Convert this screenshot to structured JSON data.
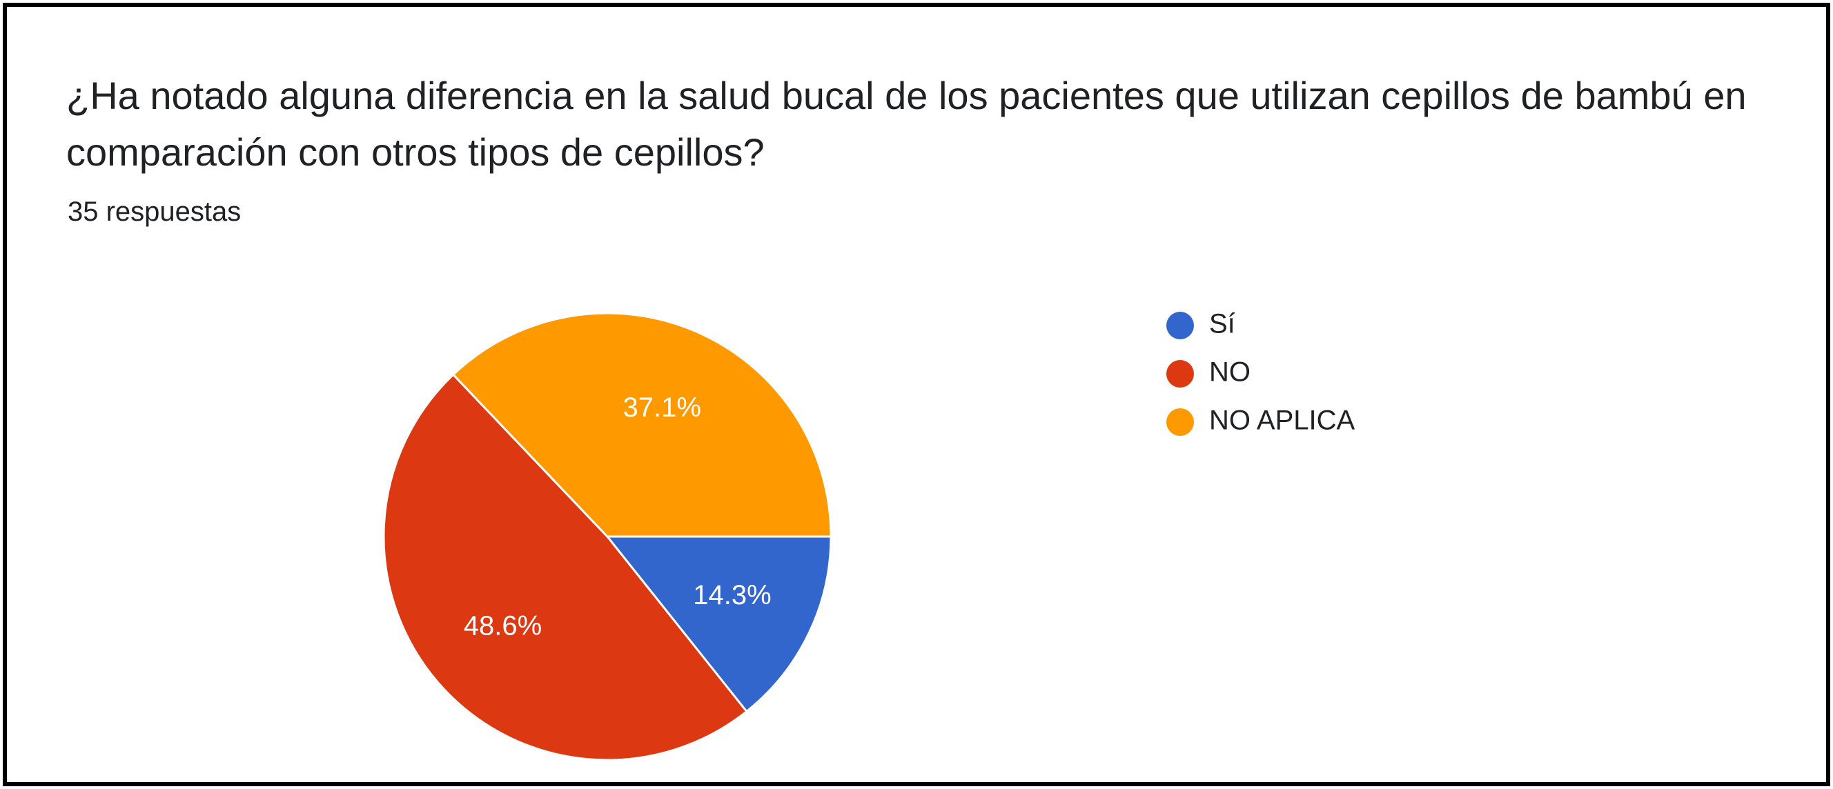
{
  "header": {
    "question": "¿Ha notado alguna diferencia en la salud bucal de los pacientes que utilizan cepillos de bambú en comparación con otros tipos de cepillos?",
    "responses": "35 respuestas"
  },
  "chart_data": {
    "type": "pie",
    "title": "¿Ha notado alguna diferencia en la salud bucal de los pacientes que utilizan cepillos de bambú en comparación con otros tipos de cepillos?",
    "subtitle": "35 respuestas",
    "categories": [
      "Sí",
      "NO",
      "NO APLICA"
    ],
    "values": [
      14.3,
      48.6,
      37.1
    ],
    "labels": [
      "14.3%",
      "48.6%",
      "37.1%"
    ],
    "colors": [
      "#3366cc",
      "#dc3912",
      "#ff9900"
    ],
    "legend_position": "right",
    "start": "3 o'clock, clockwise"
  }
}
